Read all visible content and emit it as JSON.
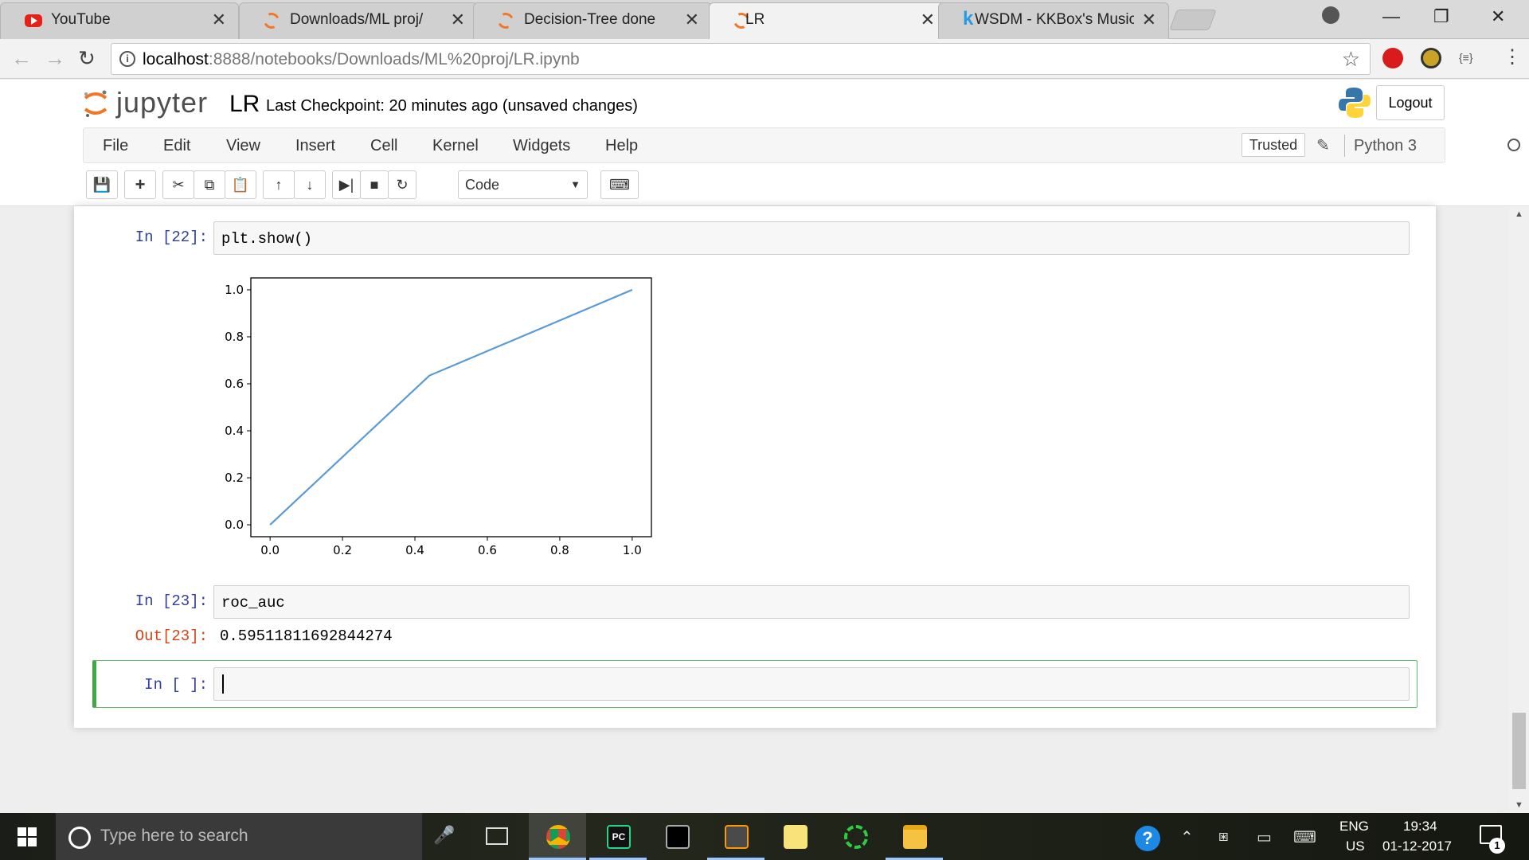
{
  "browser": {
    "tabs": [
      {
        "title": "YouTube",
        "icon": "youtube-icon"
      },
      {
        "title": "Downloads/ML proj/",
        "icon": "jupyter-icon"
      },
      {
        "title": "Decision-Tree done",
        "icon": "jupyter-icon"
      },
      {
        "title": "LR",
        "icon": "jupyter-icon",
        "active": true
      },
      {
        "title": "WSDM - KKBox's Music R",
        "icon": "kaggle-icon"
      }
    ],
    "close_glyph": "✕",
    "url_host": "localhost",
    "url_path": ":8888/notebooks/Downloads/ML%20proj/LR.ipynb"
  },
  "jupyter": {
    "logo_text": "jupyter",
    "notebook_name": "LR",
    "checkpoint": "Last Checkpoint: 20 minutes ago (unsaved changes)",
    "logout_label": "Logout",
    "menu": [
      "File",
      "Edit",
      "View",
      "Insert",
      "Cell",
      "Kernel",
      "Widgets",
      "Help"
    ],
    "trusted_label": "Trusted",
    "kernel_name": "Python 3",
    "cell_type": "Code",
    "accent_color": "#f37626"
  },
  "cells": [
    {
      "prompt": "In [22]:",
      "code": "plt.show()"
    },
    {
      "prompt": "In [23]:",
      "code": "roc_auc",
      "out_prompt": "Out[23]:",
      "output": "0.59511811692844274"
    },
    {
      "prompt": "In [ ]:",
      "code": ""
    }
  ],
  "chart_data": {
    "type": "line",
    "x": [
      0.0,
      0.44,
      1.0
    ],
    "series": [
      {
        "values": [
          0.0,
          0.635,
          1.0
        ],
        "color": "#5b9bd5"
      }
    ],
    "xlim": [
      0.0,
      1.0
    ],
    "ylim": [
      0.0,
      1.0
    ],
    "xticks": [
      "0.0",
      "0.2",
      "0.4",
      "0.6",
      "0.8",
      "1.0"
    ],
    "yticks": [
      "0.0",
      "0.2",
      "0.4",
      "0.6",
      "0.8",
      "1.0"
    ],
    "grid": false
  },
  "taskbar": {
    "search_placeholder": "Type here to search",
    "lang_top": "ENG",
    "lang_bottom": "US",
    "time": "19:34",
    "date": "01-12-2017",
    "notification_count": "1"
  }
}
